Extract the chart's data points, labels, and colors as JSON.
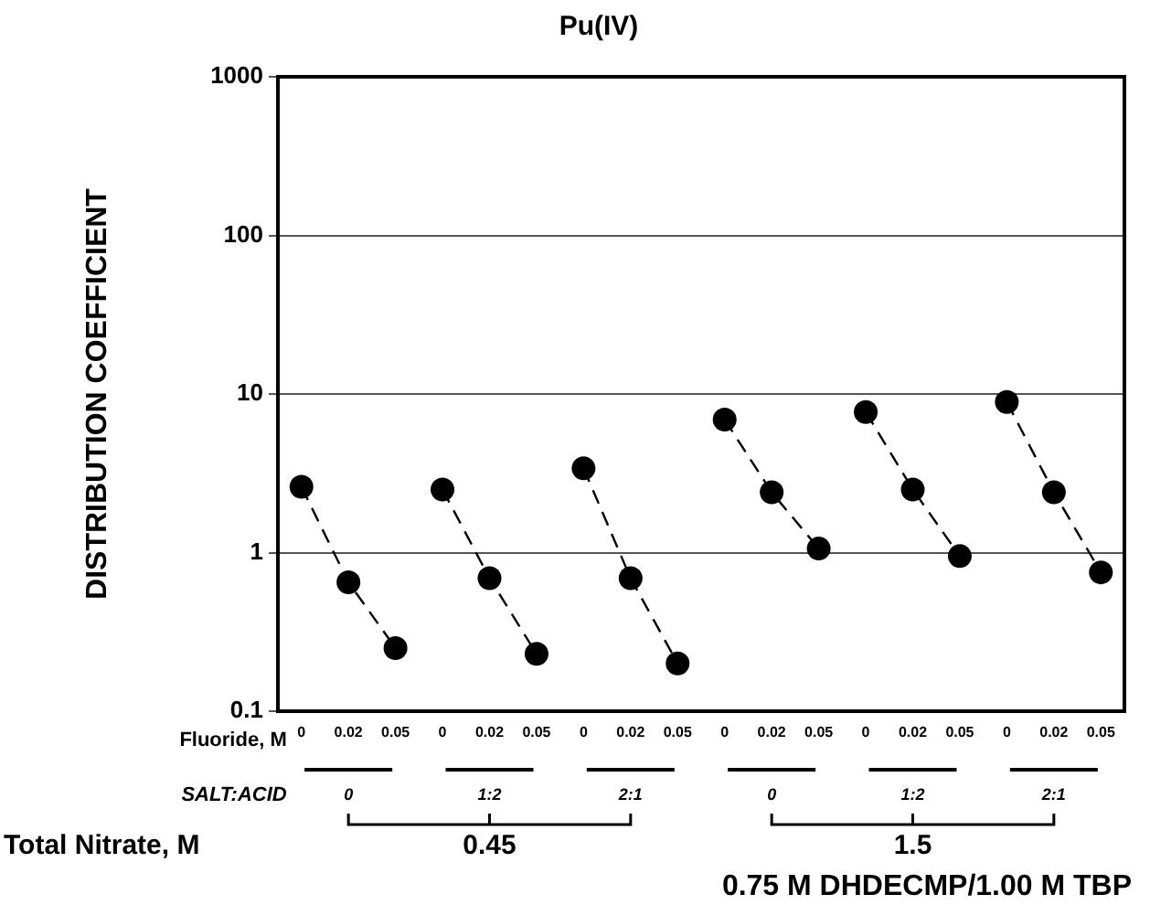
{
  "chart_data": {
    "type": "line",
    "title": "Pu(IV)",
    "ylabel": "DISTRIBUTION COEFFICIENT",
    "xlabel": "Fluoride, M",
    "categories": [
      "0",
      "0.02",
      "0.05",
      "0",
      "0.02",
      "0.05",
      "0",
      "0.02",
      "0.05",
      "0",
      "0.02",
      "0.05",
      "0",
      "0.02",
      "0.05",
      "0",
      "0.02",
      "0.05"
    ],
    "series": [
      {
        "color": "#000000",
        "values": [
          2.6,
          0.65,
          0.25,
          null,
          null,
          null,
          null,
          null,
          null,
          null,
          null,
          null,
          null,
          null,
          null,
          null,
          null,
          null
        ]
      },
      {
        "color": "#000000",
        "values": [
          null,
          null,
          null,
          2.5,
          0.69,
          0.23,
          null,
          null,
          null,
          null,
          null,
          null,
          null,
          null,
          null,
          null,
          null,
          null
        ]
      },
      {
        "color": "#000000",
        "values": [
          null,
          null,
          null,
          null,
          null,
          null,
          3.4,
          0.69,
          0.2,
          null,
          null,
          null,
          null,
          null,
          null,
          null,
          null,
          null
        ]
      },
      {
        "color": "#000000",
        "values": [
          null,
          null,
          null,
          null,
          null,
          null,
          null,
          null,
          null,
          6.9,
          2.4,
          1.06,
          null,
          null,
          null,
          null,
          null,
          null
        ]
      },
      {
        "color": "#000000",
        "values": [
          null,
          null,
          null,
          null,
          null,
          null,
          null,
          null,
          null,
          null,
          null,
          null,
          7.7,
          2.5,
          0.95,
          null,
          null,
          null
        ]
      },
      {
        "color": "#000000",
        "values": [
          null,
          null,
          null,
          null,
          null,
          null,
          null,
          null,
          null,
          null,
          null,
          null,
          null,
          null,
          null,
          8.9,
          2.4,
          0.75
        ]
      }
    ],
    "log": true,
    "ylim": [
      0.1,
      1000
    ],
    "yticks": [
      0.1,
      1,
      10,
      100,
      1000
    ],
    "grid": "y",
    "marker": "circle",
    "line_style": "dashed",
    "annotations": [
      "SALT:ACID",
      "0",
      "1:2",
      "2:1",
      "0",
      "1:2",
      "2:1",
      "Total Nitrate, M",
      "0.45",
      "1.5",
      "0.75 M DHDECMP/1.00 M TBP"
    ]
  }
}
